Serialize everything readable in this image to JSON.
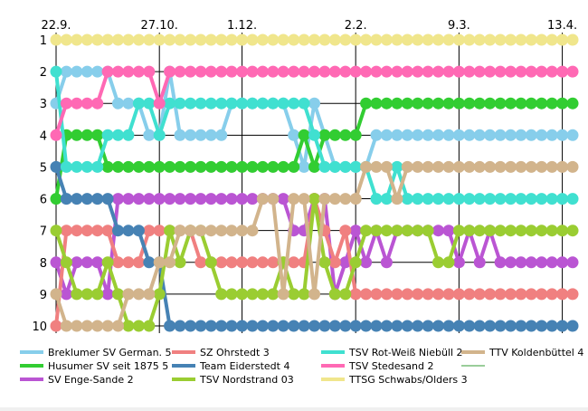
{
  "chart_data": {
    "type": "line",
    "title": "",
    "xlabel": "",
    "ylabel": "",
    "ylim": [
      1,
      10
    ],
    "y_reversed": true,
    "y_ticks": [
      1,
      2,
      3,
      4,
      5,
      6,
      7,
      8,
      9,
      10
    ],
    "x_tick_labels": [
      "22.9.",
      "27.10.",
      "1.12.",
      "2.2.",
      "9.3.",
      "13.4."
    ],
    "x_tick_rounds": [
      1,
      11,
      19,
      30,
      40,
      50
    ],
    "rounds": [
      1,
      2,
      3,
      4,
      5,
      6,
      7,
      8,
      9,
      10,
      11,
      12,
      13,
      14,
      15,
      16,
      17,
      18,
      19,
      20,
      21,
      22,
      23,
      24,
      25,
      26,
      27,
      28,
      29,
      30,
      31,
      32,
      33,
      34,
      35,
      36,
      37,
      38,
      39,
      40,
      41,
      42,
      43,
      44,
      45,
      46,
      47,
      48,
      49,
      50,
      51
    ],
    "grid": true,
    "legend_position": "bottom",
    "series": [
      {
        "name": "Breklumer SV German. 5",
        "color": "#87ceeb",
        "values": [
          3,
          2,
          2,
          2,
          2,
          2,
          3,
          3,
          3,
          4,
          4,
          2,
          4,
          4,
          4,
          4,
          4,
          3,
          3,
          3,
          3,
          3,
          3,
          4,
          5,
          3,
          4,
          5,
          5,
          5,
          5,
          4,
          4,
          4,
          4,
          4,
          4,
          4,
          4,
          4,
          4,
          4,
          4,
          4,
          4,
          4,
          4,
          4,
          4,
          4,
          4
        ]
      },
      {
        "name": "Husumer SV seit 1875 5",
        "color": "#32cd32",
        "values": [
          6,
          4,
          4,
          4,
          4,
          5,
          5,
          5,
          5,
          5,
          5,
          5,
          5,
          5,
          5,
          5,
          5,
          5,
          5,
          5,
          5,
          5,
          5,
          5,
          4,
          5,
          4,
          4,
          4,
          4,
          3,
          3,
          3,
          3,
          3,
          3,
          3,
          3,
          3,
          3,
          3,
          3,
          3,
          3,
          3,
          3,
          3,
          3,
          3,
          3,
          3
        ]
      },
      {
        "name": "SV Enge-Sande 2",
        "color": "#ba55d3",
        "values": [
          8,
          9,
          8,
          8,
          8,
          9,
          6,
          6,
          6,
          6,
          6,
          6,
          6,
          6,
          6,
          6,
          6,
          6,
          6,
          6,
          6,
          6,
          6,
          7,
          7,
          6,
          6,
          9,
          8,
          7,
          8,
          7,
          8,
          7,
          7,
          7,
          7,
          7,
          7,
          8,
          7,
          8,
          7,
          8,
          8,
          8,
          8,
          8,
          8,
          8,
          8
        ]
      },
      {
        "name": "SZ Ohrstedt 3",
        "color": "#f08080",
        "values": [
          10,
          7,
          7,
          7,
          7,
          7,
          8,
          8,
          8,
          7,
          7,
          7,
          7,
          7,
          8,
          8,
          8,
          8,
          8,
          8,
          8,
          8,
          8,
          8,
          8,
          6,
          7,
          8,
          7,
          9,
          9,
          9,
          9,
          9,
          9,
          9,
          9,
          9,
          9,
          9,
          9,
          9,
          9,
          9,
          9,
          9,
          9,
          9,
          9,
          9,
          9
        ]
      },
      {
        "name": "Team Eiderstedt 4",
        "color": "#4682b4",
        "values": [
          5,
          6,
          6,
          6,
          6,
          6,
          7,
          7,
          7,
          8,
          8,
          10,
          10,
          10,
          10,
          10,
          10,
          10,
          10,
          10,
          10,
          10,
          10,
          10,
          10,
          10,
          10,
          10,
          10,
          10,
          10,
          10,
          10,
          10,
          10,
          10,
          10,
          10,
          10,
          10,
          10,
          10,
          10,
          10,
          10,
          10,
          10,
          10,
          10,
          10,
          10
        ]
      },
      {
        "name": "TSV Nordstrand 03",
        "color": "#9acd32",
        "values": [
          7,
          8,
          9,
          9,
          9,
          8,
          9,
          10,
          10,
          10,
          9,
          7,
          8,
          7,
          7,
          8,
          9,
          9,
          9,
          9,
          9,
          9,
          8,
          9,
          9,
          6,
          8,
          9,
          9,
          8,
          7,
          7,
          7,
          7,
          7,
          7,
          7,
          8,
          8,
          7,
          7,
          7,
          7,
          7,
          7,
          7,
          7,
          7,
          7,
          7,
          7
        ]
      },
      {
        "name": "TSV Rot-Weiß Niebüll 2",
        "color": "#40e0d0",
        "values": [
          2,
          5,
          5,
          5,
          5,
          4,
          4,
          4,
          3,
          3,
          4,
          3,
          3,
          3,
          3,
          3,
          3,
          3,
          3,
          3,
          3,
          3,
          3,
          3,
          3,
          4,
          5,
          5,
          5,
          5,
          5,
          6,
          6,
          5,
          6,
          6,
          6,
          6,
          6,
          6,
          6,
          6,
          6,
          6,
          6,
          6,
          6,
          6,
          6,
          6,
          6
        ]
      },
      {
        "name": "TSV Stedesand 2",
        "color": "#ff69b4",
        "values": [
          4,
          3,
          3,
          3,
          3,
          2,
          2,
          2,
          2,
          2,
          3,
          2,
          2,
          2,
          2,
          2,
          2,
          2,
          2,
          2,
          2,
          2,
          2,
          2,
          2,
          2,
          2,
          2,
          2,
          2,
          2,
          2,
          2,
          2,
          2,
          2,
          2,
          2,
          2,
          2,
          2,
          2,
          2,
          2,
          2,
          2,
          2,
          2,
          2,
          2,
          2
        ]
      },
      {
        "name": "TTSG Schwabs/Olders 3",
        "color": "#f0e68c",
        "values": [
          1,
          1,
          1,
          1,
          1,
          1,
          1,
          1,
          1,
          1,
          1,
          1,
          1,
          1,
          1,
          1,
          1,
          1,
          1,
          1,
          1,
          1,
          1,
          1,
          1,
          1,
          1,
          1,
          1,
          1,
          1,
          1,
          1,
          1,
          1,
          1,
          1,
          1,
          1,
          1,
          1,
          1,
          1,
          1,
          1,
          1,
          1,
          1,
          1,
          1,
          1
        ]
      },
      {
        "name": "TTV Koldenbüttel 4",
        "color": "#d2b48c",
        "values": [
          9,
          10,
          10,
          10,
          10,
          10,
          10,
          9,
          9,
          9,
          8,
          8,
          7,
          7,
          7,
          7,
          7,
          7,
          7,
          7,
          6,
          6,
          9,
          6,
          6,
          9,
          6,
          6,
          6,
          6,
          5,
          5,
          5,
          6,
          5,
          5,
          5,
          5,
          5,
          5,
          5,
          5,
          5,
          5,
          5,
          5,
          5,
          5,
          5,
          5,
          5
        ]
      }
    ],
    "extra_legend_swatch": {
      "color": "#9acd9a"
    }
  }
}
